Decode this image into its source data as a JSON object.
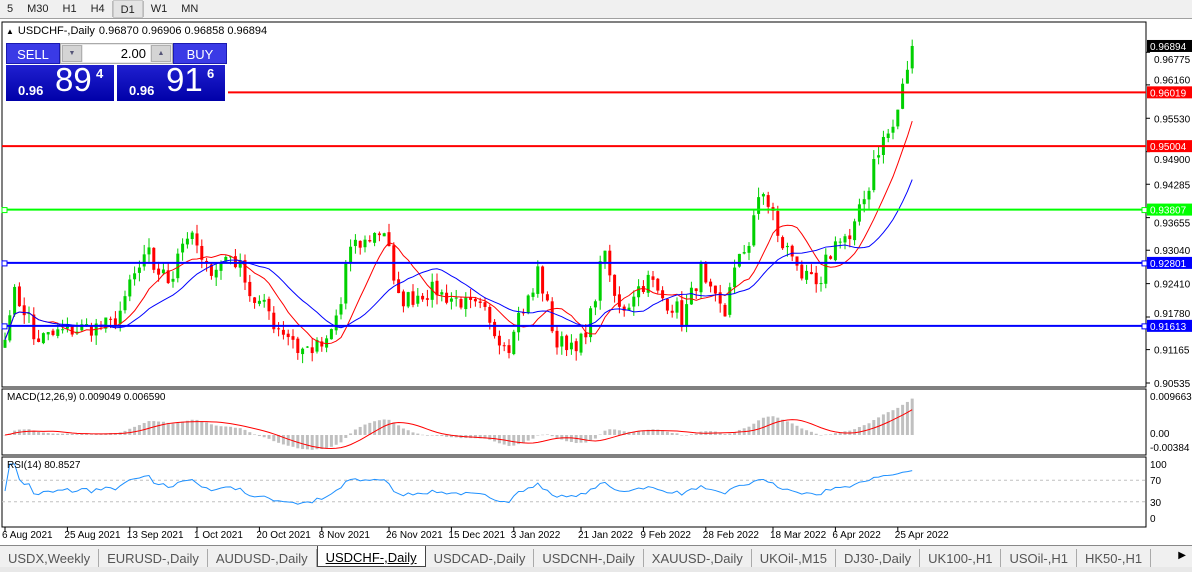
{
  "toolbar": {
    "timeframes": [
      "5",
      "M30",
      "H1",
      "H4",
      "D1",
      "W1",
      "MN"
    ],
    "active": "D1"
  },
  "chart": {
    "symbol": "USDCHF-,Daily",
    "ohlc": "0.96870 0.96906 0.96858 0.96894",
    "macd_label": "MACD(12,26,9) 0.009049 0.006590",
    "rsi_label": "RSI(14) 80.8527"
  },
  "trade_panel": {
    "sell_label": "SELL",
    "buy_label": "BUY",
    "lot": "2.00",
    "sell_prefix": "0.96",
    "sell_big": "89",
    "sell_sup": "4",
    "buy_prefix": "0.96",
    "buy_big": "91",
    "buy_sup": "6"
  },
  "colors": {
    "up": "#00d000",
    "down": "#ff0000",
    "ma_fast": "#ff0000",
    "ma_slow": "#0000ff",
    "background": "#ffffff",
    "sell_buy": "#2020d0"
  },
  "chart_data": {
    "type": "candlestick",
    "symbol": "USDCHF-",
    "timeframe": "Daily",
    "approx_closes": [
      [
        "2021-08-06",
        0.9135
      ],
      [
        "2021-08-10",
        0.922
      ],
      [
        "2021-08-16",
        0.9135
      ],
      [
        "2021-08-26",
        0.9154
      ],
      [
        "2021-09-07",
        0.9163
      ],
      [
        "2021-09-17",
        0.9295
      ],
      [
        "2021-09-23",
        0.9248
      ],
      [
        "2021-09-29",
        0.9333
      ],
      [
        "2021-10-05",
        0.9267
      ],
      [
        "2021-10-12",
        0.9295
      ],
      [
        "2021-10-19",
        0.921
      ],
      [
        "2021-11-01",
        0.9116
      ],
      [
        "2021-11-09",
        0.9125
      ],
      [
        "2021-11-16",
        0.9304
      ],
      [
        "2021-11-25",
        0.9342
      ],
      [
        "2021-11-30",
        0.921
      ],
      [
        "2021-12-10",
        0.9229
      ],
      [
        "2021-12-23",
        0.9191
      ],
      [
        "2021-12-31",
        0.9125
      ],
      [
        "2022-01-10",
        0.9267
      ],
      [
        "2022-01-14",
        0.9125
      ],
      [
        "2022-01-24",
        0.9135
      ],
      [
        "2022-01-28",
        0.9314
      ],
      [
        "2022-02-02",
        0.9191
      ],
      [
        "2022-02-10",
        0.9248
      ],
      [
        "2022-02-21",
        0.9172
      ],
      [
        "2022-02-25",
        0.9267
      ],
      [
        "2022-03-04",
        0.9182
      ],
      [
        "2022-03-10",
        0.9304
      ],
      [
        "2022-03-16",
        0.9408
      ],
      [
        "2022-03-21",
        0.9323
      ],
      [
        "2022-03-29",
        0.9248
      ],
      [
        "2022-04-01",
        0.9229
      ],
      [
        "2022-04-07",
        0.9333
      ],
      [
        "2022-04-11",
        0.9323
      ],
      [
        "2022-04-15",
        0.9427
      ],
      [
        "2022-04-20",
        0.9512
      ],
      [
        "2022-04-25",
        0.9569
      ],
      [
        "2022-04-28",
        0.96894
      ]
    ],
    "price_ticks": [
      "0.96775",
      "0.96160",
      "0.95530",
      "0.94900",
      "0.94285",
      "0.93655",
      "0.93040",
      "0.92410",
      "0.91780",
      "0.91165",
      "0.90535"
    ],
    "ylim": [
      0.90535,
      0.97
    ],
    "current_price": "0.96894",
    "levels": [
      {
        "value": "0.96019",
        "color": "#ff0000"
      },
      {
        "value": "0.95004",
        "color": "#ff0000"
      },
      {
        "value": "0.93807",
        "color": "#00ff00"
      },
      {
        "value": "0.92801",
        "color": "#0000ff"
      },
      {
        "value": "0.91613",
        "color": "#0000ff"
      }
    ],
    "date_ticks": [
      "6 Aug 2021",
      "25 Aug 2021",
      "13 Sep 2021",
      "1 Oct 2021",
      "20 Oct 2021",
      "8 Nov 2021",
      "26 Nov 2021",
      "15 Dec 2021",
      "3 Jan 2022",
      "21 Jan 2022",
      "9 Feb 2022",
      "28 Feb 2022",
      "18 Mar 2022",
      "6 Apr 2022",
      "25 Apr 2022"
    ],
    "date_tick_iso": [
      "2021-08-06",
      "2021-08-25",
      "2021-09-13",
      "2021-10-01",
      "2021-10-20",
      "2021-11-08",
      "2021-11-26",
      "2021-12-15",
      "2022-01-03",
      "2022-01-21",
      "2022-02-09",
      "2022-02-28",
      "2022-03-18",
      "2022-04-06",
      "2022-04-25"
    ],
    "macd": {
      "params": "12,26,9",
      "value": 0.009049,
      "signal": 0.00659,
      "ticks": [
        "0.009663",
        "0.00",
        "-0.00384"
      ]
    },
    "rsi": {
      "period": 14,
      "value": 80.8527,
      "ticks": [
        "100",
        "70",
        "30",
        "0"
      ],
      "levels": [
        70,
        30
      ]
    }
  },
  "tabs": [
    "USDX,Weekly",
    "EURUSD-,Daily",
    "AUDUSD-,Daily",
    "USDCHF-,Daily",
    "USDCAD-,Daily",
    "USDCNH-,Daily",
    "XAUUSD-,Daily",
    "UKOil-,M15",
    "DJ30-,Daily",
    "UK100-,H1",
    "USOil-,H1",
    "HK50-,H1"
  ],
  "active_tab": "USDCHF-,Daily"
}
